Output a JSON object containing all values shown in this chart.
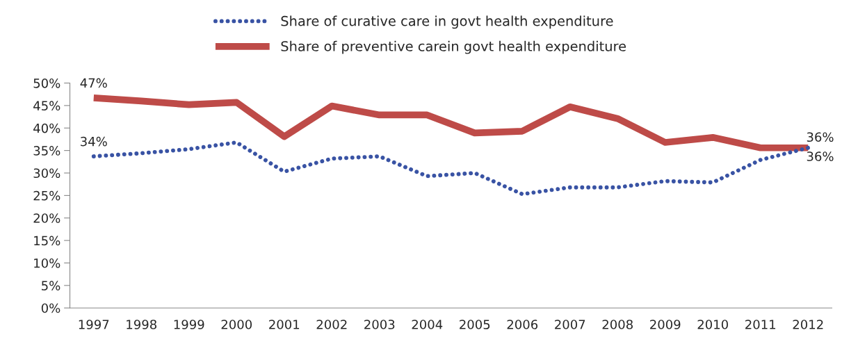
{
  "chart_data": {
    "type": "line",
    "categories": [
      "1997",
      "1998",
      "1999",
      "2000",
      "2001",
      "2002",
      "2003",
      "2004",
      "2005",
      "2006",
      "2007",
      "2008",
      "2009",
      "2010",
      "2011",
      "2012"
    ],
    "series": [
      {
        "name": "Share of curative care in govt health expenditure",
        "color": "#3953a4",
        "line_style": "dotted",
        "values": [
          33.7,
          34.4,
          35.3,
          36.8,
          30.3,
          33.2,
          33.7,
          29.3,
          30.0,
          25.3,
          26.8,
          26.8,
          28.2,
          27.9,
          32.9,
          35.6
        ],
        "value_labels": [
          "34%",
          null,
          null,
          null,
          null,
          null,
          null,
          null,
          null,
          null,
          null,
          null,
          null,
          null,
          null,
          "36%"
        ]
      },
      {
        "name": "Share of preventive carein govt health expenditure",
        "color": "#be4b48",
        "line_style": "solid",
        "values": [
          46.7,
          46.0,
          45.2,
          45.7,
          38.1,
          44.9,
          42.9,
          42.9,
          38.9,
          39.3,
          44.7,
          42.1,
          36.8,
          37.9,
          35.6,
          35.6
        ],
        "value_labels": [
          "47%",
          null,
          null,
          null,
          null,
          null,
          null,
          null,
          null,
          null,
          null,
          null,
          null,
          null,
          null,
          "36%"
        ]
      }
    ],
    "ylim": [
      0,
      50
    ],
    "yticks": [
      {
        "value": 0,
        "label": "0%"
      },
      {
        "value": 5,
        "label": "5%"
      },
      {
        "value": 10,
        "label": "10%"
      },
      {
        "value": 15,
        "label": "15%"
      },
      {
        "value": 20,
        "label": "20%"
      },
      {
        "value": 25,
        "label": "25%"
      },
      {
        "value": 30,
        "label": "30%"
      },
      {
        "value": 35,
        "label": "35%"
      },
      {
        "value": 40,
        "label": "40%"
      },
      {
        "value": 45,
        "label": "45%"
      },
      {
        "value": 50,
        "label": "50%"
      }
    ],
    "grid": false,
    "legend": "top",
    "marker": "none"
  }
}
